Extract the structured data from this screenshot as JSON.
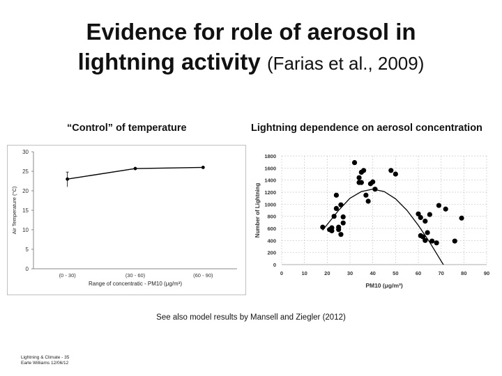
{
  "slide": {
    "title_line1": "Evidence for role of aerosol in",
    "title_line2_bold": "lightning activity",
    "title_line2_cite": "(Farias et al., 2009)",
    "note": "See also model results by Mansell and Ziegler (2012)",
    "footer_line1": "Lightning & Climate - 35",
    "footer_line2": "Earle Williams 12/06/12"
  },
  "chart_data": [
    {
      "type": "line",
      "title": "“Control” of temperature",
      "xlabel": "Range of concentratic - PM10 (μg/m³)",
      "ylabel": "Air Temperature (°C)",
      "ylim": [
        0,
        30
      ],
      "yticks": [
        "0",
        "5",
        "10",
        "15",
        "20",
        "25",
        "30"
      ],
      "categories": [
        "(0 - 30)",
        "(30 - 60)",
        "(60 - 90)"
      ],
      "values": [
        23.0,
        25.7,
        26.0
      ],
      "error_bar": {
        "category": "(0 - 30)",
        "low": 21.0,
        "high": 24.8
      }
    },
    {
      "type": "scatter",
      "title": "Lightning dependence on aerosol concentration",
      "xlabel": "PM10 (μg/m³)",
      "ylabel": "Number of Lightning",
      "xlim": [
        0,
        90
      ],
      "ylim": [
        0,
        1800
      ],
      "xticks": [
        "0",
        "10",
        "20",
        "30",
        "40",
        "50",
        "60",
        "70",
        "80",
        "90"
      ],
      "yticks": [
        "0",
        "200",
        "400",
        "600",
        "800",
        "1000",
        "1200",
        "1400",
        "1600",
        "1800"
      ],
      "points": [
        [
          18,
          620
        ],
        [
          21,
          580
        ],
        [
          22,
          560
        ],
        [
          22,
          610
        ],
        [
          23,
          800
        ],
        [
          24,
          930
        ],
        [
          25,
          580
        ],
        [
          25,
          620
        ],
        [
          26,
          500
        ],
        [
          26,
          990
        ],
        [
          27,
          790
        ],
        [
          27,
          690
        ],
        [
          24,
          1150
        ],
        [
          32,
          1690
        ],
        [
          34,
          1440
        ],
        [
          34,
          1360
        ],
        [
          35,
          1360
        ],
        [
          36,
          1560
        ],
        [
          35,
          1530
        ],
        [
          37,
          1150
        ],
        [
          38,
          1050
        ],
        [
          39,
          1340
        ],
        [
          40,
          1370
        ],
        [
          41,
          1250
        ],
        [
          48,
          1560
        ],
        [
          50,
          1500
        ],
        [
          60,
          840
        ],
        [
          61,
          780
        ],
        [
          61,
          480
        ],
        [
          62,
          460
        ],
        [
          63,
          720
        ],
        [
          63,
          400
        ],
        [
          64,
          530
        ],
        [
          65,
          830
        ],
        [
          66,
          390
        ],
        [
          68,
          360
        ],
        [
          69,
          980
        ],
        [
          72,
          920
        ],
        [
          76,
          390
        ],
        [
          79,
          770
        ]
      ],
      "trend_curve": [
        [
          18,
          570
        ],
        [
          25,
          900
        ],
        [
          30,
          1100
        ],
        [
          35,
          1210
        ],
        [
          40,
          1250
        ],
        [
          45,
          1210
        ],
        [
          50,
          1090
        ],
        [
          55,
          900
        ],
        [
          60,
          650
        ],
        [
          65,
          370
        ],
        [
          70,
          60
        ],
        [
          71,
          0
        ]
      ]
    }
  ]
}
